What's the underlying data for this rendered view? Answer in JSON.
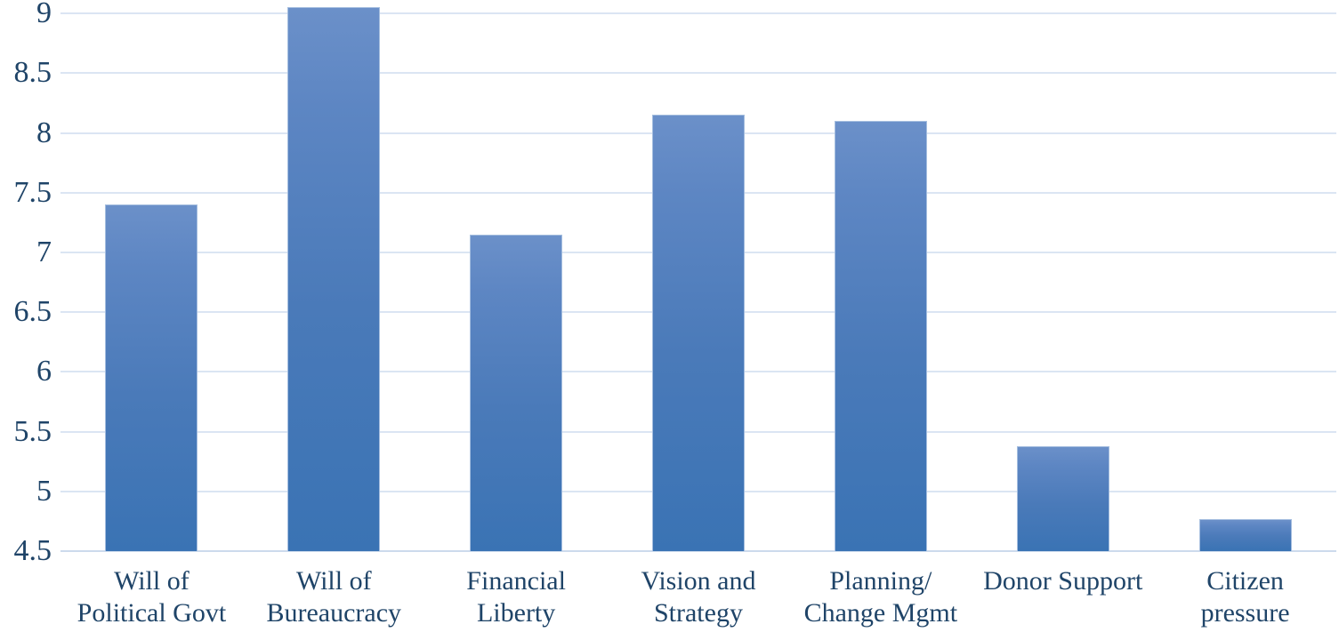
{
  "chart_data": {
    "type": "bar",
    "categories": [
      "Will of\nPolitical Govt",
      "Will of\nBureaucracy",
      "Financial\nLiberty",
      "Vision and\nStrategy",
      "Planning/\nChange Mgmt",
      "Donor Support",
      "Citizen\npressure"
    ],
    "values": [
      7.4,
      9.05,
      7.15,
      8.15,
      8.1,
      5.38,
      4.77
    ],
    "title": "",
    "xlabel": "",
    "ylabel": "",
    "ylim": [
      4.5,
      9
    ],
    "ytick_step": 0.5,
    "ytick_labels": [
      "9",
      "8.5",
      "8",
      "7.5",
      "7",
      "6.5",
      "6",
      "5.5",
      "5",
      "4.5"
    ],
    "grid": true,
    "legend": false,
    "series_name": ""
  },
  "colors": {
    "bar_gradient_top": "#6b90c9",
    "bar_gradient_bottom": "#3a73b4",
    "bar_border": "#a5bedf",
    "gridline": "#dbe5f3",
    "axis_text": "#1f4468",
    "background": "#ffffff"
  }
}
